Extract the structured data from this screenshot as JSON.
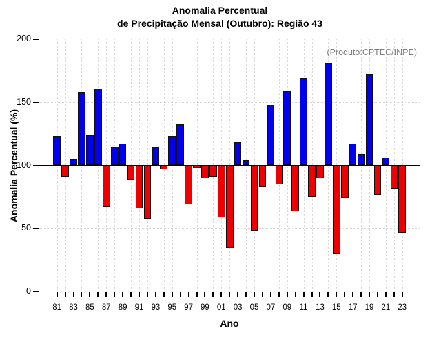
{
  "title": {
    "line1": "Anomalia Percentual",
    "line2": "de Precipitação Mensal (Outubro): Região 43"
  },
  "annotation": "(Produto:CPTEC/INPE)",
  "axes": {
    "x_label": "Ano",
    "y_label": "Anomalia Percentual (%)",
    "y_ticks": [
      0,
      50,
      100,
      150,
      200
    ],
    "x_tick_labels": [
      "81",
      "83",
      "85",
      "87",
      "89",
      "91",
      "93",
      "95",
      "97",
      "99",
      "01",
      "03",
      "05",
      "07",
      "09",
      "11",
      "13",
      "15",
      "17",
      "19",
      "21",
      "23"
    ]
  },
  "colors": {
    "bar_above": "#0000ee",
    "bar_below": "#ee0000",
    "bar_border": "#111111",
    "baseline": "#000000",
    "grid": "#d9d9d9",
    "annotation_text": "#7e7e7e"
  },
  "chart_data": {
    "type": "bar",
    "title": "Anomalia Percentual de Precipitação Mensal (Outubro): Região 43",
    "xlabel": "Ano",
    "ylabel": "Anomalia Percentual (%)",
    "ylim": [
      0,
      200
    ],
    "baseline": 100,
    "grid": "dotted, vertical line per year, horizontal at 50/100/150",
    "legend_position": "none",
    "x": [
      1981,
      1982,
      1983,
      1984,
      1985,
      1986,
      1987,
      1988,
      1989,
      1990,
      1991,
      1992,
      1993,
      1994,
      1995,
      1996,
      1997,
      1998,
      1999,
      2000,
      2001,
      2002,
      2003,
      2004,
      2005,
      2006,
      2007,
      2008,
      2009,
      2010,
      2011,
      2012,
      2013,
      2014,
      2015,
      2016,
      2017,
      2018,
      2019,
      2020,
      2021,
      2022,
      2023
    ],
    "values": [
      123,
      91,
      105,
      158,
      124,
      161,
      67,
      115,
      117,
      89,
      66,
      58,
      115,
      97,
      123,
      133,
      69,
      98,
      90,
      91,
      59,
      35,
      118,
      104,
      48,
      83,
      148,
      85,
      159,
      64,
      169,
      75,
      90,
      181,
      30,
      74,
      117,
      109,
      172,
      77,
      106,
      82,
      47
    ]
  }
}
